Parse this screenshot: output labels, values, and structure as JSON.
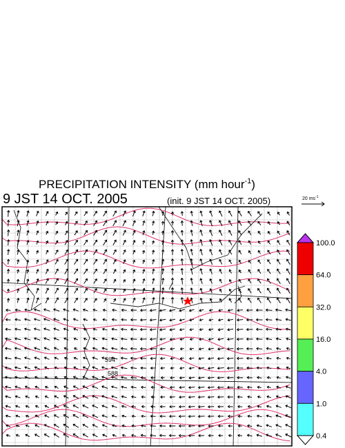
{
  "title": {
    "text": "PRECIPITATION INTENSITY (mm hour",
    "superscript": "-1",
    "suffix": ")"
  },
  "valid_time": "9 JST 14 OCT. 2005",
  "init_time": "(init. 9 JST 14 OCT. 2005)",
  "reference_vector": {
    "label": "20 ms",
    "superscript": "-1"
  },
  "contour_labels": [
    "594",
    "588"
  ],
  "legend": {
    "levels": [
      "100.0",
      "64.0",
      "32.0",
      "16.0",
      "4.0",
      "1.0",
      "0.4"
    ],
    "colors": [
      "#ee0000",
      "#ffa040",
      "#ffff66",
      "#55ee55",
      "#6666ff",
      "#55ffff"
    ],
    "over_color": "#bb33ee",
    "under_color": "#ffffff"
  }
}
